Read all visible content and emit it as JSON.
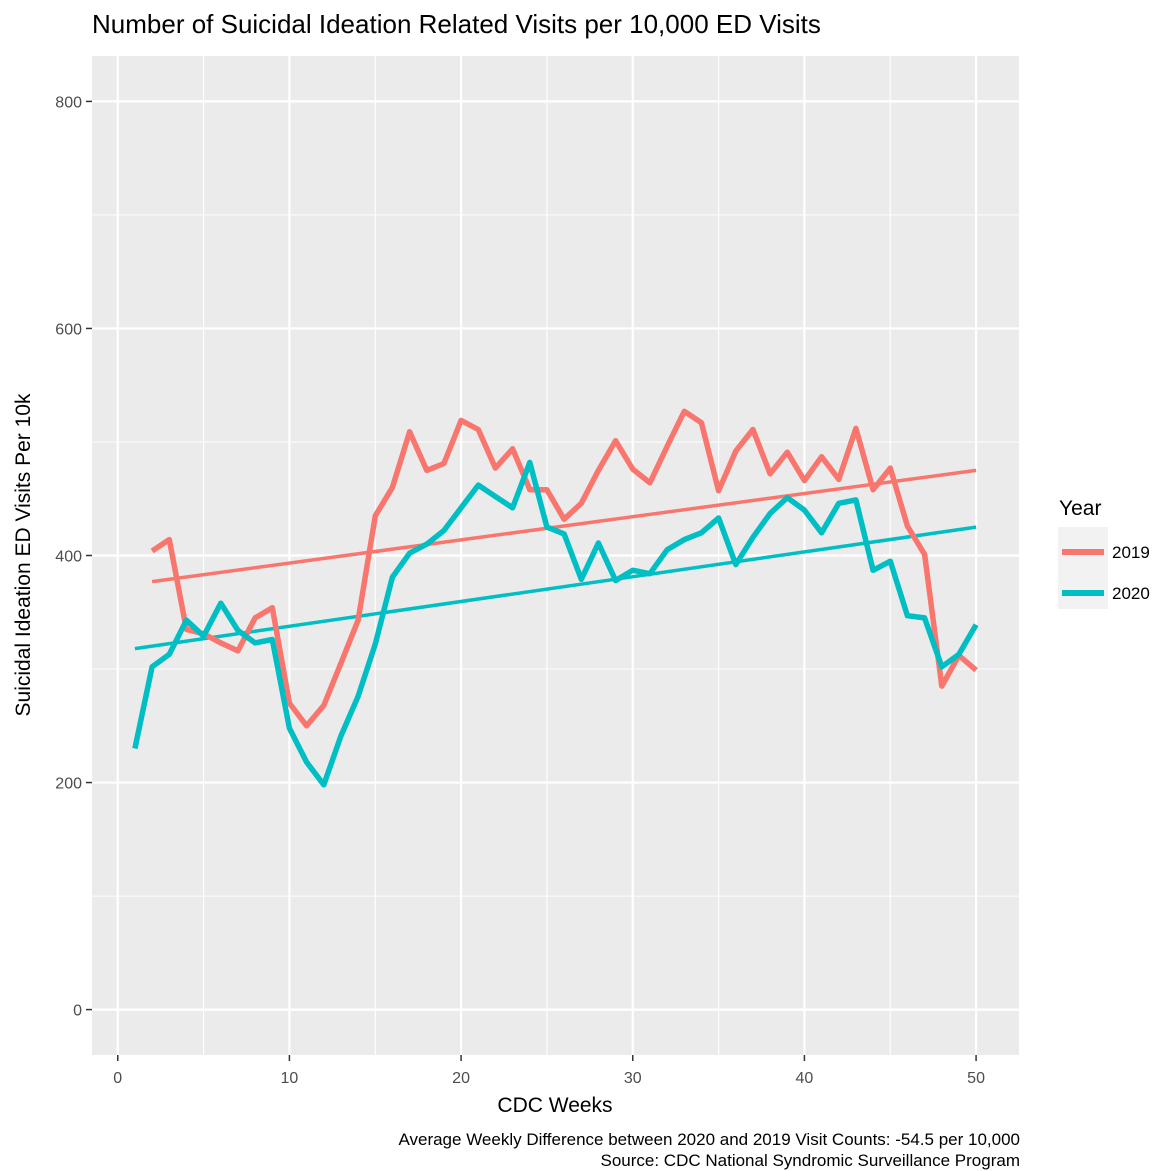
{
  "chart_data": {
    "type": "line",
    "title": "Number of Suicidal Ideation Related Visits per 10,000 ED Visits",
    "xlabel": "CDC Weeks",
    "ylabel": "Suicidal Ideation ED Visits Per 10k",
    "xlim": [
      -1.5,
      52.5
    ],
    "ylim": [
      -40,
      840
    ],
    "x_ticks": [
      0,
      10,
      20,
      30,
      40,
      50
    ],
    "y_ticks": [
      0,
      200,
      400,
      600,
      800
    ],
    "x_tick_labels": [
      "0",
      "10",
      "20",
      "30",
      "40",
      "50"
    ],
    "y_tick_labels": [
      "0",
      "200",
      "400",
      "600",
      "800"
    ],
    "grid": true,
    "background": "#ebebeb",
    "legend": {
      "title": "Year",
      "position": "right",
      "entries": [
        "2019",
        "2020"
      ]
    },
    "series": [
      {
        "name": "2019",
        "color": "#f8766d",
        "x": [
          2,
          3,
          4,
          5,
          6,
          7,
          8,
          9,
          10,
          11,
          12,
          13,
          14,
          15,
          16,
          17,
          18,
          19,
          20,
          21,
          22,
          23,
          24,
          25,
          26,
          27,
          28,
          29,
          30,
          31,
          32,
          33,
          34,
          35,
          36,
          37,
          38,
          39,
          40,
          41,
          42,
          43,
          44,
          45,
          46,
          47,
          48,
          49,
          50
        ],
        "values": [
          404,
          414,
          335,
          331,
          323,
          316,
          345,
          354,
          270,
          250,
          268,
          305,
          343,
          435,
          460,
          509,
          475,
          481,
          519,
          511,
          477,
          494,
          458,
          458,
          432,
          446,
          475,
          501,
          476,
          464,
          496,
          527,
          517,
          457,
          492,
          511,
          472,
          491,
          466,
          487,
          467,
          512,
          458,
          477,
          426,
          401,
          285,
          312,
          299
        ],
        "trend": {
          "x": [
            2,
            50
          ],
          "values": [
            377,
            475
          ]
        }
      },
      {
        "name": "2020",
        "color": "#00bfc4",
        "x": [
          1,
          2,
          3,
          4,
          5,
          6,
          7,
          8,
          9,
          10,
          11,
          12,
          13,
          14,
          15,
          16,
          17,
          18,
          19,
          20,
          21,
          22,
          23,
          24,
          25,
          26,
          27,
          28,
          29,
          30,
          31,
          32,
          33,
          34,
          35,
          36,
          37,
          38,
          39,
          40,
          41,
          42,
          43,
          44,
          45,
          46,
          47,
          48,
          49,
          50
        ],
        "values": [
          230,
          302,
          313,
          343,
          329,
          358,
          334,
          323,
          326,
          248,
          218,
          198,
          241,
          276,
          322,
          381,
          402,
          410,
          422,
          442,
          462,
          452,
          442,
          482,
          425,
          419,
          379,
          411,
          378,
          387,
          384,
          405,
          414,
          420,
          433,
          392,
          416,
          437,
          451,
          440,
          420,
          446,
          449,
          387,
          395,
          347,
          345,
          302,
          313,
          339
        ],
        "trend": {
          "x": [
            1,
            50
          ],
          "values": [
            318,
            425
          ]
        }
      }
    ],
    "caption": [
      "Average Weekly Difference between 2020 and 2019 Visit Counts: -54.5 per 10,000",
      "Source: CDC National Syndromic Surveillance Program"
    ]
  }
}
